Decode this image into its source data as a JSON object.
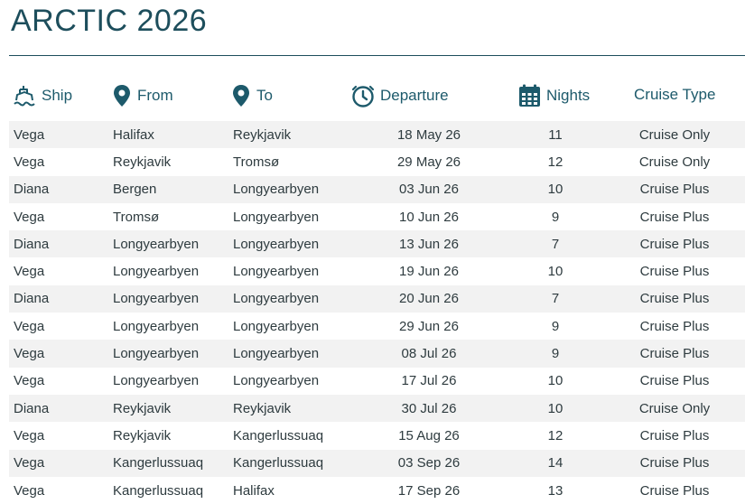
{
  "page": {
    "title": "ARCTIC 2026"
  },
  "headers": {
    "ship": {
      "label": "Ship",
      "icon": "ship-icon"
    },
    "from": {
      "label": "From",
      "icon": "map-pin-icon"
    },
    "to": {
      "label": "To",
      "icon": "map-pin-icon"
    },
    "departure": {
      "label": "Departure",
      "icon": "clock-icon"
    },
    "nights": {
      "label": "Nights",
      "icon": "calendar-icon"
    },
    "cruise_type": {
      "label": "Cruise Type"
    }
  },
  "colors": {
    "accent": "#1d4e5c",
    "row_shade": "#f2f2f2",
    "text": "#2e3b3f"
  },
  "rows": [
    {
      "ship": "Vega",
      "from": "Halifax",
      "to": "Reykjavik",
      "departure": "18 May 26",
      "nights": "11",
      "type": "Cruise Only"
    },
    {
      "ship": "Vega",
      "from": "Reykjavik",
      "to": "Tromsø",
      "departure": "29 May 26",
      "nights": "12",
      "type": "Cruise Only"
    },
    {
      "ship": "Diana",
      "from": "Bergen",
      "to": "Longyearbyen",
      "departure": "03 Jun 26",
      "nights": "10",
      "type": "Cruise Plus"
    },
    {
      "ship": "Vega",
      "from": "Tromsø",
      "to": "Longyearbyen",
      "departure": "10 Jun 26",
      "nights": "9",
      "type": "Cruise Plus"
    },
    {
      "ship": "Diana",
      "from": "Longyearbyen",
      "to": "Longyearbyen",
      "departure": "13 Jun 26",
      "nights": "7",
      "type": "Cruise Plus"
    },
    {
      "ship": "Vega",
      "from": "Longyearbyen",
      "to": "Longyearbyen",
      "departure": "19 Jun 26",
      "nights": "10",
      "type": "Cruise Plus"
    },
    {
      "ship": "Diana",
      "from": "Longyearbyen",
      "to": "Longyearbyen",
      "departure": "20 Jun 26",
      "nights": "7",
      "type": "Cruise Plus"
    },
    {
      "ship": "Vega",
      "from": "Longyearbyen",
      "to": "Longyearbyen",
      "departure": "29 Jun 26",
      "nights": "9",
      "type": "Cruise Plus"
    },
    {
      "ship": "Vega",
      "from": "Longyearbyen",
      "to": "Longyearbyen",
      "departure": "08 Jul 26",
      "nights": "9",
      "type": "Cruise Plus"
    },
    {
      "ship": "Vega",
      "from": "Longyearbyen",
      "to": "Longyearbyen",
      "departure": "17 Jul 26",
      "nights": "10",
      "type": "Cruise Plus"
    },
    {
      "ship": "Diana",
      "from": "Reykjavik",
      "to": "Reykjavik",
      "departure": "30 Jul 26",
      "nights": "10",
      "type": "Cruise Only"
    },
    {
      "ship": "Vega",
      "from": "Reykjavik",
      "to": "Kangerlussuaq",
      "departure": "15 Aug 26",
      "nights": "12",
      "type": "Cruise Plus"
    },
    {
      "ship": "Vega",
      "from": "Kangerlussuaq",
      "to": "Kangerlussuaq",
      "departure": "03 Sep 26",
      "nights": "14",
      "type": "Cruise Plus"
    },
    {
      "ship": "Vega",
      "from": "Kangerlussuaq",
      "to": "Halifax",
      "departure": "17 Sep 26",
      "nights": "13",
      "type": "Cruise Plus"
    }
  ]
}
